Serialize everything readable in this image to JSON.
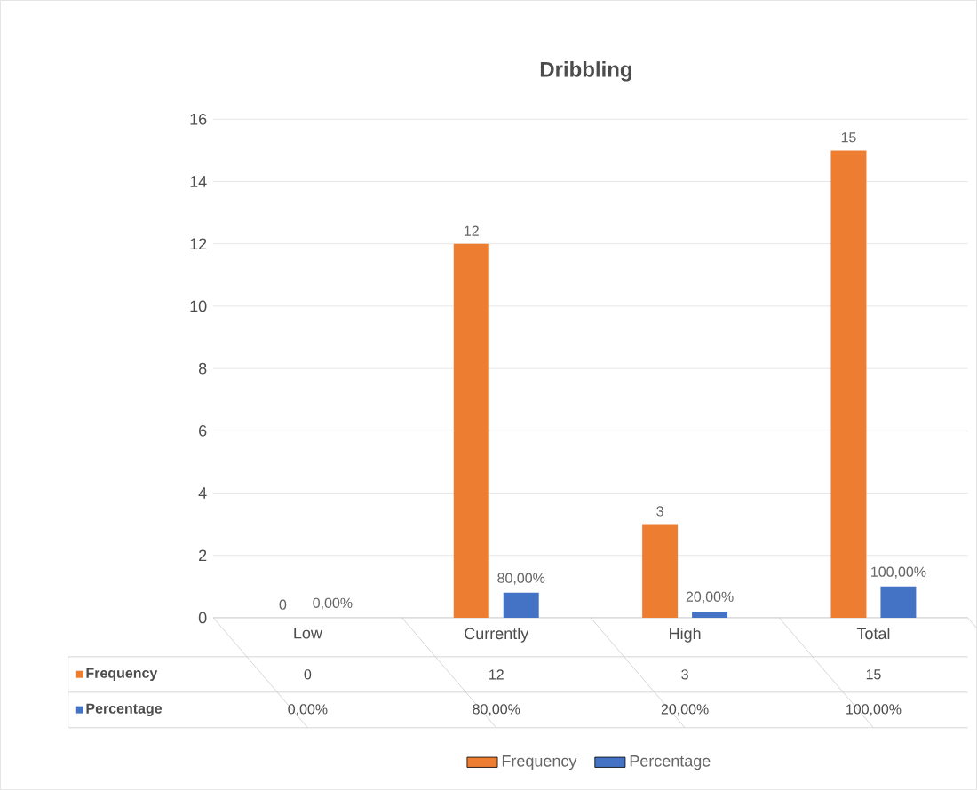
{
  "chart_data": {
    "type": "bar",
    "title": "Dribbling",
    "categories": [
      "Low",
      "Currently",
      "High",
      "Total"
    ],
    "series": [
      {
        "name": "Frequency",
        "color": "#ed7d31",
        "values": [
          0,
          12,
          3,
          15
        ],
        "value_labels": [
          "0",
          "12",
          "3",
          "15"
        ]
      },
      {
        "name": "Percentage",
        "color": "#4472c4",
        "values": [
          0,
          0.8,
          0.2,
          1.0
        ],
        "value_labels": [
          "0,00%",
          "80,00%",
          "20,00%",
          "100,00%"
        ]
      }
    ],
    "ylim": [
      0,
      16
    ],
    "yticks": [
      0,
      2,
      4,
      6,
      8,
      10,
      12,
      14,
      16
    ],
    "grid": "y",
    "legend": "bottom"
  }
}
